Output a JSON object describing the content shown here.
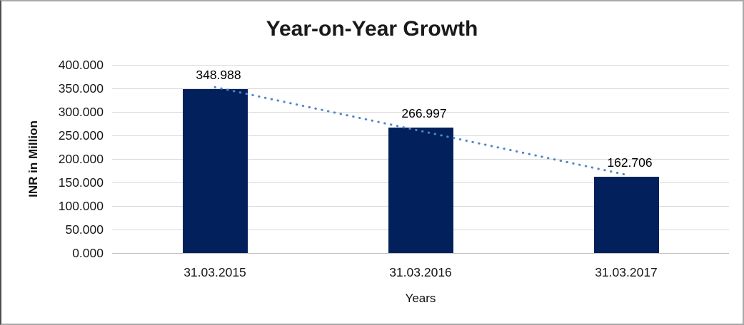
{
  "window": {
    "background": "#ffffff",
    "border_color": "#a9a9a9"
  },
  "chart_data": {
    "type": "bar",
    "title": "Year-on-Year Growth",
    "xlabel": "Years",
    "ylabel": "INR in Million",
    "categories": [
      "31.03.2015",
      "31.03.2016",
      "31.03.2017"
    ],
    "values": [
      348.988,
      266.997,
      162.706
    ],
    "value_labels": [
      "348.988",
      "266.997",
      "162.706"
    ],
    "ylim": [
      0,
      400
    ],
    "ytick_step": 50,
    "ytick_labels": [
      "0.000",
      "50.000",
      "100.000",
      "150.000",
      "200.000",
      "250.000",
      "300.000",
      "350.000",
      "400.000"
    ],
    "grid": true,
    "legend_position": "none",
    "bar_color": "#02215c",
    "gridline_color": "#d9d9d9",
    "axis_line_color": "#bfbfbf",
    "trendline": {
      "type": "linear",
      "style": "dotted",
      "color": "#4e86ca"
    }
  }
}
